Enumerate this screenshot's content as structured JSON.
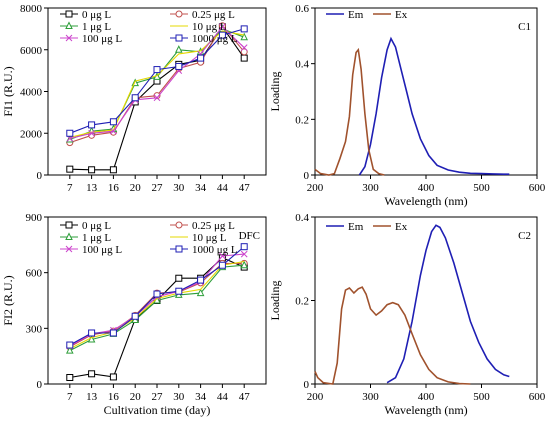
{
  "chart_data": [
    {
      "id": "fi1",
      "type": "line",
      "annotation": "",
      "ylabel": "FI1 (R.U.)",
      "xlabel": "",
      "categories": [
        "7",
        "13",
        "16",
        "20",
        "27",
        "30",
        "34",
        "44",
        "47"
      ],
      "ylim": [
        0,
        8000
      ],
      "yticks": [
        0,
        2000,
        4000,
        6000,
        8000
      ],
      "yticklabels": [
        "0",
        "2000",
        "4000",
        "6000",
        "8000"
      ],
      "grid": false,
      "legend_position": "top-left",
      "series": [
        {
          "name": "0 μg L",
          "color": "#000000",
          "marker": "square",
          "values": [
            280,
            250,
            250,
            3500,
            4500,
            5300,
            5500,
            7100,
            5600
          ]
        },
        {
          "name": "0.25 μg L",
          "color": "#c0504d",
          "marker": "circle",
          "values": [
            1550,
            1900,
            2050,
            3700,
            3800,
            5100,
            5400,
            7150,
            5900
          ]
        },
        {
          "name": "1 μg L",
          "color": "#2e9e3a",
          "marker": "triangle",
          "values": [
            1700,
            2100,
            2200,
            4400,
            4700,
            6000,
            5900,
            7000,
            6600
          ]
        },
        {
          "name": "10 μg L",
          "color": "#e6d800",
          "marker": "none",
          "values": [
            1800,
            2050,
            2150,
            4500,
            4750,
            5800,
            5950,
            6900,
            6700
          ]
        },
        {
          "name": "100 μg L",
          "color": "#cc44cc",
          "marker": "cross",
          "values": [
            1750,
            2000,
            2100,
            3600,
            3700,
            5000,
            5800,
            7100,
            6100
          ]
        },
        {
          "name": "1000 μg L",
          "color": "#1f1fb4",
          "marker": "square",
          "values": [
            2000,
            2400,
            2550,
            3700,
            5050,
            5200,
            5600,
            6700,
            7000
          ]
        }
      ]
    },
    {
      "id": "c1",
      "type": "line",
      "annotation": "C1",
      "ylabel": "Loading",
      "xlabel": "Wavelength (nm)",
      "xlim": [
        200,
        600
      ],
      "xticks": [
        200,
        300,
        400,
        500,
        600
      ],
      "xticklabels": [
        "200",
        "300",
        "400",
        "500",
        "600"
      ],
      "ylim": [
        0,
        0.6
      ],
      "yticks": [
        0,
        0.2,
        0.4,
        0.6
      ],
      "yticklabels": [
        "0",
        "0.2",
        "0.4",
        "0.6"
      ],
      "grid": false,
      "legend_position": "top-left",
      "series": [
        {
          "name": "Em",
          "color": "#1f1fb4",
          "points": [
            [
              280,
              0
            ],
            [
              290,
              0.03
            ],
            [
              300,
              0.11
            ],
            [
              310,
              0.22
            ],
            [
              320,
              0.35
            ],
            [
              330,
              0.45
            ],
            [
              337,
              0.49
            ],
            [
              345,
              0.46
            ],
            [
              355,
              0.38
            ],
            [
              365,
              0.3
            ],
            [
              375,
              0.22
            ],
            [
              390,
              0.13
            ],
            [
              405,
              0.07
            ],
            [
              420,
              0.035
            ],
            [
              440,
              0.018
            ],
            [
              460,
              0.01
            ],
            [
              480,
              0.006
            ],
            [
              500,
              0.005
            ],
            [
              520,
              0.004
            ],
            [
              540,
              0.003
            ],
            [
              550,
              0.003
            ]
          ]
        },
        {
          "name": "Ex",
          "color": "#a0522d",
          "points": [
            [
              200,
              0.02
            ],
            [
              210,
              0.005
            ],
            [
              225,
              0
            ],
            [
              235,
              0.005
            ],
            [
              245,
              0.06
            ],
            [
              255,
              0.12
            ],
            [
              262,
              0.21
            ],
            [
              268,
              0.36
            ],
            [
              274,
              0.44
            ],
            [
              278,
              0.45
            ],
            [
              283,
              0.38
            ],
            [
              290,
              0.22
            ],
            [
              297,
              0.09
            ],
            [
              305,
              0.02
            ],
            [
              315,
              0.005
            ],
            [
              325,
              0
            ]
          ]
        }
      ]
    },
    {
      "id": "fi2",
      "type": "line",
      "annotation": "DFC",
      "ylabel": "FI2 (R.U.)",
      "xlabel": "Cultivation time (day)",
      "categories": [
        "7",
        "13",
        "16",
        "20",
        "27",
        "30",
        "34",
        "44",
        "47"
      ],
      "ylim": [
        0,
        900
      ],
      "yticks": [
        0,
        300,
        600,
        900
      ],
      "yticklabels": [
        "0",
        "300",
        "600",
        "900"
      ],
      "grid": false,
      "legend_position": "top-left",
      "series": [
        {
          "name": "0 μg L",
          "color": "#000000",
          "marker": "square",
          "values": [
            35,
            55,
            38,
            350,
            450,
            570,
            570,
            680,
            630
          ]
        },
        {
          "name": "0.25 μg L",
          "color": "#c0504d",
          "marker": "circle",
          "values": [
            200,
            265,
            285,
            370,
            490,
            495,
            545,
            650,
            650
          ]
        },
        {
          "name": "1 μg L",
          "color": "#2e9e3a",
          "marker": "triangle",
          "values": [
            180,
            240,
            270,
            345,
            450,
            480,
            490,
            630,
            640
          ]
        },
        {
          "name": "10 μg L",
          "color": "#e6d800",
          "marker": "none",
          "values": [
            190,
            250,
            280,
            355,
            460,
            490,
            510,
            640,
            660
          ]
        },
        {
          "name": "100 μg L",
          "color": "#cc44cc",
          "marker": "cross",
          "values": [
            205,
            270,
            290,
            365,
            470,
            500,
            550,
            690,
            700
          ]
        },
        {
          "name": "1000 μg L",
          "color": "#1f1fb4",
          "marker": "square",
          "values": [
            210,
            275,
            275,
            365,
            485,
            500,
            560,
            640,
            740
          ]
        }
      ]
    },
    {
      "id": "c2",
      "type": "line",
      "annotation": "C2",
      "ylabel": "Loading",
      "xlabel": "Wavelength (nm)",
      "xlim": [
        200,
        600
      ],
      "xticks": [
        200,
        300,
        400,
        500,
        600
      ],
      "xticklabels": [
        "200",
        "300",
        "400",
        "500",
        "600"
      ],
      "ylim": [
        0,
        0.4
      ],
      "yticks": [
        0,
        0.2,
        0.4
      ],
      "yticklabels": [
        "0",
        "0.2",
        "0.4"
      ],
      "grid": false,
      "legend_position": "top-left",
      "series": [
        {
          "name": "Em",
          "color": "#1f1fb4",
          "points": [
            [
              330,
              0.003
            ],
            [
              345,
              0.015
            ],
            [
              360,
              0.06
            ],
            [
              375,
              0.15
            ],
            [
              390,
              0.26
            ],
            [
              400,
              0.32
            ],
            [
              410,
              0.365
            ],
            [
              418,
              0.38
            ],
            [
              425,
              0.375
            ],
            [
              435,
              0.35
            ],
            [
              450,
              0.29
            ],
            [
              465,
              0.22
            ],
            [
              480,
              0.15
            ],
            [
              495,
              0.1
            ],
            [
              510,
              0.06
            ],
            [
              525,
              0.035
            ],
            [
              540,
              0.022
            ],
            [
              550,
              0.018
            ]
          ]
        },
        {
          "name": "Ex",
          "color": "#a0522d",
          "points": [
            [
              200,
              0.03
            ],
            [
              205,
              0.015
            ],
            [
              215,
              0.003
            ],
            [
              232,
              0
            ],
            [
              240,
              0.05
            ],
            [
              248,
              0.18
            ],
            [
              255,
              0.225
            ],
            [
              262,
              0.23
            ],
            [
              270,
              0.218
            ],
            [
              278,
              0.228
            ],
            [
              285,
              0.232
            ],
            [
              292,
              0.215
            ],
            [
              300,
              0.18
            ],
            [
              310,
              0.165
            ],
            [
              320,
              0.175
            ],
            [
              330,
              0.19
            ],
            [
              340,
              0.195
            ],
            [
              350,
              0.19
            ],
            [
              362,
              0.165
            ],
            [
              375,
              0.12
            ],
            [
              390,
              0.07
            ],
            [
              405,
              0.035
            ],
            [
              420,
              0.015
            ],
            [
              440,
              0.005
            ],
            [
              460,
              0.001
            ],
            [
              480,
              0
            ]
          ]
        }
      ]
    }
  ]
}
